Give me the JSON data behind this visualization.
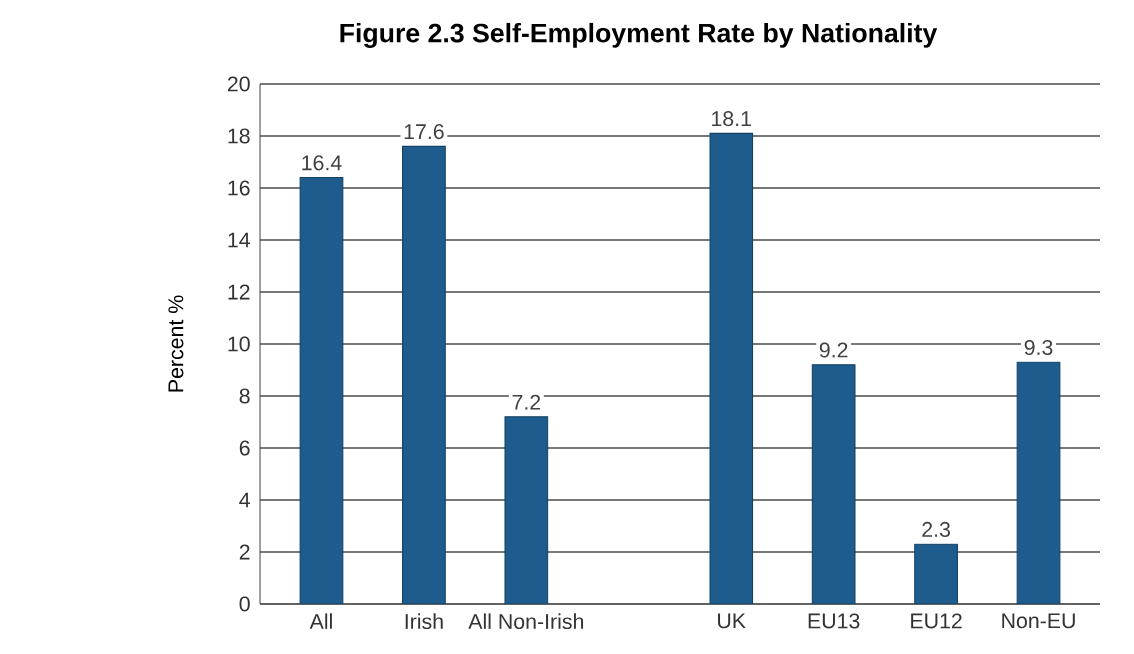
{
  "chart_data": {
    "type": "bar",
    "title": "Figure 2.3 Self-Employment Rate by Nationality",
    "ylabel": "Percent %",
    "categories": [
      "All",
      "Irish",
      "All Non-Irish",
      null,
      "UK",
      "EU13",
      "EU12",
      "Non-EU"
    ],
    "values": [
      16.4,
      17.6,
      7.2,
      null,
      18.1,
      9.2,
      2.3,
      9.3
    ],
    "color": "#1d5c8c",
    "ylim": [
      0,
      20
    ],
    "yticks": [
      0,
      2,
      4,
      6,
      8,
      10,
      12,
      14,
      16,
      18,
      20
    ],
    "grid": "y",
    "data_labels": true
  }
}
